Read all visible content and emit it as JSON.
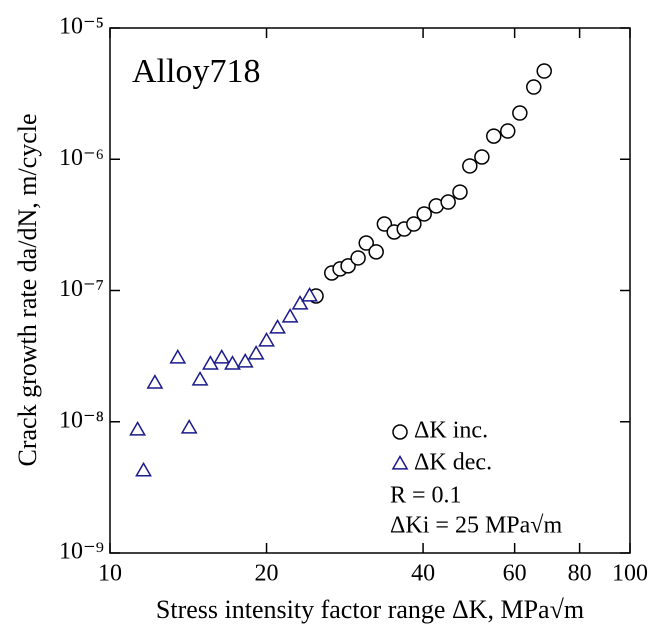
{
  "chart_data": {
    "type": "scatter",
    "title": "Alloy718",
    "xlabel": "Stress intensity factor range   ΔK,  MPa√m",
    "ylabel": "Crack growth rate  da/dN,  m/cycle",
    "xscale": "log",
    "yscale": "log",
    "xlim": [
      10,
      100
    ],
    "ylim": [
      1e-09,
      1e-05
    ],
    "xticks": [
      10,
      20,
      40,
      60,
      80,
      100
    ],
    "yticks": [
      {
        "value": 1e-09,
        "label": "10⁻⁹"
      },
      {
        "value": 1e-08,
        "label": "10⁻⁸"
      },
      {
        "value": 1e-07,
        "label": "10⁻⁷"
      },
      {
        "value": 1e-06,
        "label": "10⁻⁶"
      },
      {
        "value": 1e-05,
        "label": "10⁻⁵"
      }
    ],
    "legend": "lower right",
    "annotations": [
      "R = 0.1",
      "ΔKi = 25 MPa√m"
    ],
    "series": [
      {
        "name": "ΔK inc.",
        "marker": "circle",
        "color": "#000000",
        "x": [
          24.9,
          26.7,
          27.7,
          28.7,
          30.0,
          31.1,
          32.5,
          33.7,
          35.2,
          36.8,
          38.4,
          40.2,
          42.4,
          44.7,
          47.1,
          49.2,
          51.9,
          54.7,
          58.2,
          61.4,
          65.3,
          68.4
        ],
        "values": [
          9.08e-08,
          1.36e-07,
          1.46e-07,
          1.54e-07,
          1.77e-07,
          2.3e-07,
          1.97e-07,
          3.21e-07,
          2.79e-07,
          2.94e-07,
          3.21e-07,
          3.83e-07,
          4.41e-07,
          4.72e-07,
          5.62e-07,
          8.89e-07,
          1.04e-06,
          1.5e-06,
          1.64e-06,
          2.25e-06,
          3.55e-06,
          4.7e-06
        ]
      },
      {
        "name": "ΔK dec.",
        "marker": "triangle",
        "color": "#1a1a8c",
        "x": [
          11.3,
          11.6,
          12.2,
          13.5,
          14.2,
          14.9,
          15.6,
          16.4,
          17.2,
          18.2,
          19.1,
          20.0,
          21.0,
          22.2,
          23.2,
          24.2
        ],
        "values": [
          8.65e-09,
          4.22e-09,
          1.97e-08,
          3.06e-08,
          8.96e-09,
          2.08e-08,
          2.75e-08,
          3.06e-08,
          2.75e-08,
          2.85e-08,
          3.28e-08,
          4.12e-08,
          5.18e-08,
          6.28e-08,
          7.89e-08,
          9.08e-08
        ]
      }
    ]
  }
}
